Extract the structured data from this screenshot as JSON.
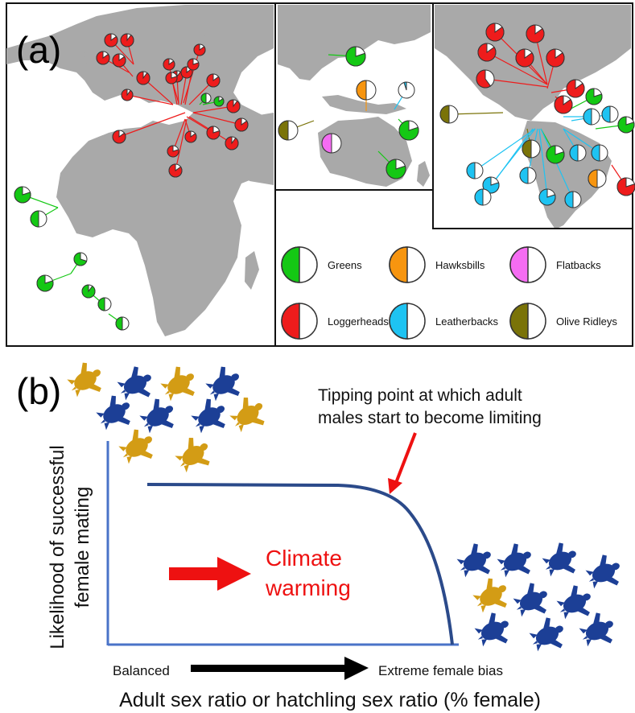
{
  "panel_a": {
    "label": "(a)",
    "legend": [
      {
        "label": "Greens",
        "color": "#14c814"
      },
      {
        "label": "Hawksbills",
        "color": "#f7950f"
      },
      {
        "label": "Flatbacks",
        "color": "#f56cf2"
      },
      {
        "label": "Loggerheads",
        "color": "#ee1c1c"
      },
      {
        "label": "Leatherbacks",
        "color": "#1ec3f2"
      },
      {
        "label": "Olive Ridleys",
        "color": "#7a7308"
      }
    ],
    "colors": {
      "land": "#a9a9a9",
      "sea": "#ffffff",
      "border": "#111111"
    }
  },
  "panel_b": {
    "label": "(b)",
    "annotation": {
      "line1": "Tipping point at which adult",
      "line2": "males start to become limiting"
    },
    "climate": {
      "line1": "Climate",
      "line2": "warming",
      "color": "#ee1111"
    },
    "ylabel": {
      "line1": "Likelihood of successful",
      "line2": "female mating"
    },
    "x_start": "Balanced",
    "x_end": "Extreme female bias",
    "xlabel": "Adult sex ratio or hatchling sex ratio (% female)",
    "colors": {
      "curve": "#2b4a8a",
      "axis": "#4a73c8",
      "male_turtle": "#1c3f96",
      "female_turtle": "#d39c15"
    }
  }
}
